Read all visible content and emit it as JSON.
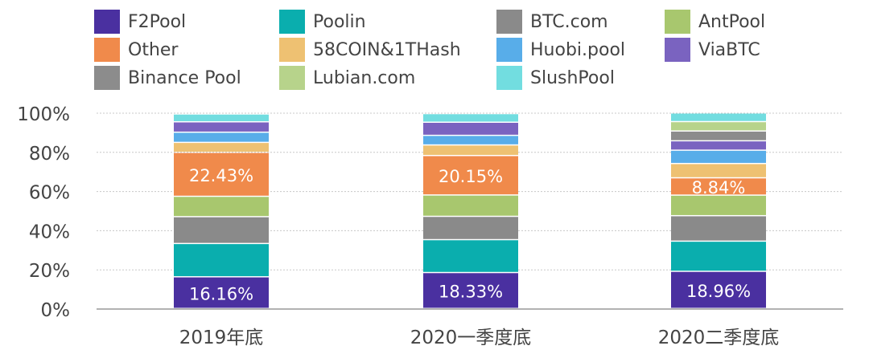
{
  "chart_data": {
    "type": "bar",
    "stacked": true,
    "categories": [
      "2019年底",
      "2020一季度底",
      "2020二季度底"
    ],
    "ylim": [
      0,
      100
    ],
    "yticks": [
      "0%",
      "20%",
      "40%",
      "60%",
      "80%",
      "100%"
    ],
    "legend_position": "top",
    "series": [
      {
        "name": "F2Pool",
        "color": "#4a30a0",
        "values": [
          16.16,
          18.33,
          18.96
        ],
        "labels": [
          "16.16%",
          "18.33%",
          "18.96%"
        ]
      },
      {
        "name": "Poolin",
        "color": "#0aaeae",
        "values": [
          17.0,
          16.8,
          15.4
        ]
      },
      {
        "name": "BTC.com",
        "color": "#8a8a8a",
        "values": [
          13.7,
          11.9,
          13.0
        ]
      },
      {
        "name": "AntPool",
        "color": "#a8c76e",
        "values": [
          10.4,
          10.9,
          10.5
        ]
      },
      {
        "name": "Other",
        "color": "#f08a4b",
        "values": [
          22.43,
          20.15,
          8.84
        ],
        "labels": [
          "22.43%",
          "20.15%",
          "8.84%"
        ]
      },
      {
        "name": "58COIN&1THash",
        "color": "#eec172",
        "values": [
          5.1,
          5.4,
          7.3
        ]
      },
      {
        "name": "Huobi.pool",
        "color": "#58ade9",
        "values": [
          5.2,
          4.9,
          6.8
        ]
      },
      {
        "name": "ViaBTC",
        "color": "#7a63c0",
        "values": [
          5.3,
          6.7,
          4.8
        ]
      },
      {
        "name": "Binance Pool",
        "color": "#8c8c8c",
        "values": [
          0,
          0,
          5.0
        ]
      },
      {
        "name": "Lubian.com",
        "color": "#b7d38b",
        "values": [
          0,
          0,
          4.8
        ]
      },
      {
        "name": "SlushPool",
        "color": "#72dde0",
        "values": [
          4.0,
          4.4,
          4.4
        ]
      }
    ],
    "legend_order": [
      "F2Pool",
      "Poolin",
      "BTC.com",
      "AntPool",
      "Other",
      "58COIN&1THash",
      "Huobi.pool",
      "ViaBTC",
      "Binance Pool",
      "Lubian.com",
      "SlushPool"
    ]
  }
}
